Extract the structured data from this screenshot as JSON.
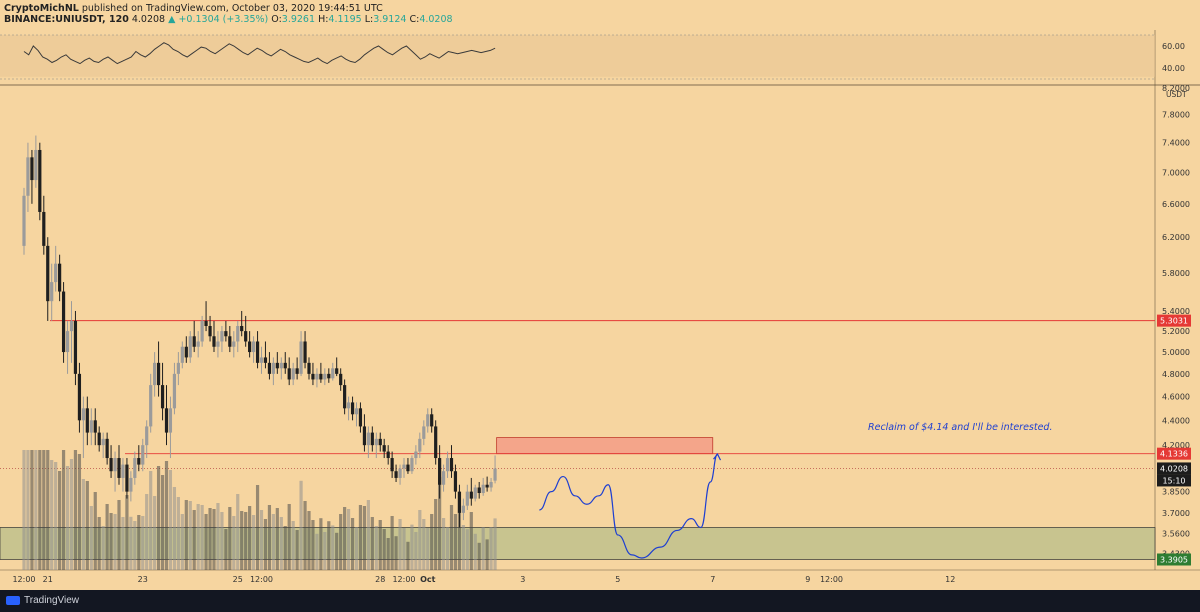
{
  "header": {
    "author": "CryptoMichNL",
    "published_text": "published on TradingView.com, October 03, 2020 19:44:51 UTC",
    "symbol": "BINANCE:UNIUSDT, 120",
    "last": "4.0208",
    "change": "▲ +0.1304 (+3.35%)",
    "o_label": "O:",
    "o": "3.9261",
    "h_label": "H:",
    "h": "4.1195",
    "l_label": "L:",
    "l": "3.9124",
    "c_label": "C:",
    "c": "4.0208"
  },
  "footer": {
    "brand": "TradingView"
  },
  "colors": {
    "background": "#f6d5a0",
    "candle_bull": "#9b9b9b",
    "candle_bear": "#1f1f1f",
    "resistance_line": "#e53935",
    "resistance_zone": "#f4a58a",
    "support_zone": "#c8c48f",
    "projection": "#1e3fd1",
    "rsi_line": "#3a3a3a"
  },
  "chart_data": {
    "type": "candlestick",
    "symbol": "BINANCE:UNIUSDT",
    "timeframe": "120",
    "currency": "USDT",
    "y_ticks": [
      "8.2000",
      "7.8000",
      "7.4000",
      "7.0000",
      "6.6000",
      "6.2000",
      "5.8000",
      "5.4000",
      "5.2000",
      "5.0000",
      "4.8000",
      "4.6000",
      "4.4000",
      "4.2000",
      "3.8500",
      "3.7000",
      "3.5600",
      "3.4300"
    ],
    "y_tick_values": [
      8.2,
      7.8,
      7.4,
      7.0,
      6.6,
      6.2,
      5.8,
      5.4,
      5.2,
      5.0,
      4.8,
      4.6,
      4.4,
      4.2,
      3.85,
      3.7,
      3.56,
      3.43
    ],
    "x_ticks": [
      {
        "label": "12:00",
        "day": 0.0
      },
      {
        "label": "21",
        "day": 0.5
      },
      {
        "label": "23",
        "day": 2.5
      },
      {
        "label": "25",
        "day": 4.5
      },
      {
        "label": "12:00",
        "day": 5.0
      },
      {
        "label": "28",
        "day": 7.5
      },
      {
        "label": "12:00",
        "day": 8.0
      },
      {
        "label": "Oct",
        "day": 8.5
      },
      {
        "label": "3",
        "day": 10.5
      },
      {
        "label": "5",
        "day": 12.5
      },
      {
        "label": "7",
        "day": 14.5
      },
      {
        "label": "9",
        "day": 16.5
      },
      {
        "label": "12:00",
        "day": 17.0
      },
      {
        "label": "12",
        "day": 19.5
      }
    ],
    "price_labels": [
      {
        "text": "5.3031",
        "value": 5.3031,
        "style": "red"
      },
      {
        "text": "4.1336",
        "value": 4.1336,
        "style": "red"
      },
      {
        "text": "4.0208",
        "value": 4.0208,
        "style": "dark"
      },
      {
        "text": "15:10",
        "value": 3.93,
        "style": "dark"
      },
      {
        "text": "3.3905",
        "value": 3.3905,
        "style": "green"
      }
    ],
    "key_levels": [
      {
        "name": "resistance",
        "value": 5.3031
      },
      {
        "name": "reclaim level",
        "value": 4.1336
      },
      {
        "name": "last price",
        "value": 4.0208
      }
    ],
    "zones": [
      {
        "name": "resistance box",
        "from": 4.1336,
        "to": 4.26,
        "start_day": 9.95,
        "end_day": 14.5
      },
      {
        "name": "support zone",
        "from": 3.3905,
        "to": 3.6
      }
    ],
    "annotation": "Reclaim of $4.14 and I'll be interested.",
    "projection_path": [
      [
        10.85,
        3.72
      ],
      [
        11.1,
        3.85
      ],
      [
        11.35,
        3.96
      ],
      [
        11.6,
        3.82
      ],
      [
        11.85,
        3.76
      ],
      [
        12.1,
        3.82
      ],
      [
        12.3,
        3.9
      ],
      [
        12.5,
        3.55
      ],
      [
        12.8,
        3.42
      ],
      [
        13.0,
        3.4
      ],
      [
        13.4,
        3.47
      ],
      [
        13.75,
        3.58
      ],
      [
        14.05,
        3.66
      ],
      [
        14.25,
        3.6
      ],
      [
        14.45,
        3.92
      ],
      [
        14.6,
        4.13
      ]
    ],
    "candles": [
      [
        0.0,
        6.1,
        6.8,
        6.0,
        6.7
      ],
      [
        0.083,
        6.7,
        7.4,
        6.5,
        7.2
      ],
      [
        0.167,
        7.2,
        7.3,
        6.6,
        6.9
      ],
      [
        0.25,
        6.9,
        7.5,
        6.8,
        7.3
      ],
      [
        0.333,
        7.3,
        7.4,
        6.4,
        6.5
      ],
      [
        0.417,
        6.5,
        6.7,
        6.0,
        6.1
      ],
      [
        0.5,
        6.1,
        6.2,
        5.3,
        5.5
      ],
      [
        0.583,
        5.5,
        5.9,
        5.3,
        5.7
      ],
      [
        0.667,
        5.7,
        6.1,
        5.6,
        5.9
      ],
      [
        0.75,
        5.9,
        6.0,
        5.5,
        5.6
      ],
      [
        0.833,
        5.6,
        5.7,
        4.9,
        5.0
      ],
      [
        0.917,
        5.0,
        5.3,
        4.8,
        5.2
      ],
      [
        1.0,
        5.2,
        5.5,
        4.9,
        5.3
      ],
      [
        1.083,
        5.3,
        5.4,
        4.7,
        4.8
      ],
      [
        1.167,
        4.8,
        4.9,
        4.3,
        4.4
      ],
      [
        1.25,
        4.4,
        4.6,
        4.1,
        4.5
      ],
      [
        1.333,
        4.5,
        4.6,
        4.2,
        4.3
      ],
      [
        1.417,
        4.3,
        4.5,
        4.2,
        4.4
      ],
      [
        1.5,
        4.4,
        4.5,
        4.2,
        4.3
      ],
      [
        1.583,
        4.3,
        4.35,
        4.15,
        4.2
      ],
      [
        1.667,
        4.2,
        4.3,
        4.1,
        4.25
      ],
      [
        1.75,
        4.25,
        4.3,
        4.05,
        4.1
      ],
      [
        1.833,
        4.1,
        4.2,
        3.95,
        4.0
      ],
      [
        1.917,
        4.0,
        4.15,
        3.85,
        4.1
      ],
      [
        2.0,
        4.1,
        4.2,
        3.9,
        3.95
      ],
      [
        2.083,
        3.95,
        4.1,
        3.85,
        4.05
      ],
      [
        2.167,
        4.05,
        4.1,
        3.8,
        3.85
      ],
      [
        2.25,
        3.85,
        4.0,
        3.78,
        3.95
      ],
      [
        2.333,
        3.95,
        4.15,
        3.9,
        4.1
      ],
      [
        2.417,
        4.1,
        4.2,
        4.0,
        4.05
      ],
      [
        2.5,
        4.05,
        4.25,
        4.0,
        4.2
      ],
      [
        2.583,
        4.2,
        4.4,
        4.1,
        4.35
      ],
      [
        2.667,
        4.35,
        4.8,
        4.3,
        4.7
      ],
      [
        2.75,
        4.7,
        5.0,
        4.6,
        4.9
      ],
      [
        2.833,
        4.9,
        5.1,
        4.6,
        4.7
      ],
      [
        2.917,
        4.7,
        4.9,
        4.4,
        4.5
      ],
      [
        3.0,
        4.5,
        4.7,
        4.2,
        4.3
      ],
      [
        3.083,
        4.3,
        4.6,
        4.1,
        4.5
      ],
      [
        3.167,
        4.5,
        4.9,
        4.45,
        4.8
      ],
      [
        3.25,
        4.8,
        5.0,
        4.7,
        4.9
      ],
      [
        3.333,
        4.9,
        5.1,
        4.85,
        5.05
      ],
      [
        3.417,
        5.05,
        5.15,
        4.9,
        4.95
      ],
      [
        3.5,
        4.95,
        5.2,
        4.9,
        5.15
      ],
      [
        3.583,
        5.15,
        5.3,
        5.0,
        5.05
      ],
      [
        3.667,
        5.05,
        5.2,
        4.95,
        5.1
      ],
      [
        3.75,
        5.1,
        5.35,
        5.05,
        5.3
      ],
      [
        3.833,
        5.3,
        5.5,
        5.2,
        5.25
      ],
      [
        3.917,
        5.25,
        5.35,
        5.1,
        5.15
      ],
      [
        4.0,
        5.15,
        5.3,
        5.0,
        5.05
      ],
      [
        4.083,
        5.05,
        5.2,
        4.95,
        5.1
      ],
      [
        4.167,
        5.1,
        5.25,
        5.0,
        5.2
      ],
      [
        4.25,
        5.2,
        5.3,
        5.1,
        5.15
      ],
      [
        4.333,
        5.15,
        5.25,
        5.0,
        5.05
      ],
      [
        4.417,
        5.05,
        5.2,
        4.95,
        5.1
      ],
      [
        4.5,
        5.1,
        5.3,
        5.0,
        5.25
      ],
      [
        4.583,
        5.25,
        5.4,
        5.15,
        5.2
      ],
      [
        4.667,
        5.2,
        5.35,
        5.05,
        5.1
      ],
      [
        4.75,
        5.1,
        5.2,
        4.95,
        5.0
      ],
      [
        4.833,
        5.0,
        5.15,
        4.9,
        5.1
      ],
      [
        4.917,
        5.1,
        5.2,
        4.85,
        4.9
      ],
      [
        5.0,
        4.9,
        5.05,
        4.8,
        4.95
      ],
      [
        5.083,
        4.95,
        5.1,
        4.85,
        4.9
      ],
      [
        5.167,
        4.9,
        5.0,
        4.75,
        4.8
      ],
      [
        5.25,
        4.8,
        4.95,
        4.7,
        4.9
      ],
      [
        5.333,
        4.9,
        5.0,
        4.8,
        4.85
      ],
      [
        5.417,
        4.85,
        4.95,
        4.75,
        4.9
      ],
      [
        5.5,
        4.9,
        5.0,
        4.8,
        4.85
      ],
      [
        5.583,
        4.85,
        4.95,
        4.7,
        4.75
      ],
      [
        5.667,
        4.75,
        4.9,
        4.7,
        4.85
      ],
      [
        5.75,
        4.85,
        4.95,
        4.75,
        4.8
      ],
      [
        5.833,
        4.8,
        5.2,
        4.78,
        5.1
      ],
      [
        5.917,
        5.1,
        5.2,
        4.85,
        4.9
      ],
      [
        6.0,
        4.9,
        4.95,
        4.75,
        4.8
      ],
      [
        6.083,
        4.8,
        4.9,
        4.7,
        4.75
      ],
      [
        6.167,
        4.75,
        4.85,
        4.68,
        4.8
      ],
      [
        6.25,
        4.8,
        4.9,
        4.72,
        4.75
      ],
      [
        6.333,
        4.75,
        4.85,
        4.7,
        4.8
      ],
      [
        6.417,
        4.8,
        4.85,
        4.72,
        4.76
      ],
      [
        6.5,
        4.76,
        4.9,
        4.74,
        4.85
      ],
      [
        6.583,
        4.85,
        4.95,
        4.78,
        4.8
      ],
      [
        6.667,
        4.8,
        4.85,
        4.65,
        4.7
      ],
      [
        6.75,
        4.7,
        4.75,
        4.45,
        4.5
      ],
      [
        6.833,
        4.5,
        4.6,
        4.4,
        4.55
      ],
      [
        6.917,
        4.55,
        4.6,
        4.4,
        4.45
      ],
      [
        7.0,
        4.45,
        4.55,
        4.35,
        4.5
      ],
      [
        7.083,
        4.5,
        4.55,
        4.3,
        4.35
      ],
      [
        7.167,
        4.35,
        4.45,
        4.15,
        4.2
      ],
      [
        7.25,
        4.2,
        4.35,
        4.1,
        4.3
      ],
      [
        7.333,
        4.3,
        4.35,
        4.15,
        4.2
      ],
      [
        7.417,
        4.2,
        4.3,
        4.1,
        4.25
      ],
      [
        7.5,
        4.25,
        4.3,
        4.15,
        4.2
      ],
      [
        7.583,
        4.2,
        4.25,
        4.1,
        4.15
      ],
      [
        7.667,
        4.15,
        4.2,
        4.05,
        4.1
      ],
      [
        7.75,
        4.1,
        4.15,
        3.95,
        4.0
      ],
      [
        7.833,
        4.0,
        4.05,
        3.92,
        3.95
      ],
      [
        7.917,
        3.95,
        4.05,
        3.9,
        4.02
      ],
      [
        8.0,
        4.02,
        4.1,
        3.95,
        4.05
      ],
      [
        8.083,
        4.05,
        4.1,
        3.98,
        4.0
      ],
      [
        8.167,
        4.0,
        4.12,
        3.98,
        4.1
      ],
      [
        8.25,
        4.1,
        4.2,
        4.05,
        4.15
      ],
      [
        8.333,
        4.15,
        4.3,
        4.1,
        4.25
      ],
      [
        8.417,
        4.25,
        4.4,
        4.2,
        4.35
      ],
      [
        8.5,
        4.35,
        4.5,
        4.3,
        4.45
      ],
      [
        8.583,
        4.45,
        4.5,
        4.3,
        4.35
      ],
      [
        8.667,
        4.35,
        4.4,
        4.05,
        4.1
      ],
      [
        8.75,
        4.1,
        4.2,
        3.8,
        3.9
      ],
      [
        8.833,
        3.9,
        4.05,
        3.85,
        4.0
      ],
      [
        8.917,
        4.0,
        4.15,
        3.95,
        4.1
      ],
      [
        9.0,
        4.1,
        4.2,
        3.95,
        4.0
      ],
      [
        9.083,
        4.0,
        4.05,
        3.8,
        3.85
      ],
      [
        9.167,
        3.85,
        3.9,
        3.6,
        3.7
      ],
      [
        9.25,
        3.7,
        3.8,
        3.65,
        3.75
      ],
      [
        9.333,
        3.75,
        3.9,
        3.72,
        3.85
      ],
      [
        9.417,
        3.85,
        3.95,
        3.75,
        3.8
      ],
      [
        9.5,
        3.8,
        3.9,
        3.78,
        3.88
      ],
      [
        9.583,
        3.88,
        3.92,
        3.8,
        3.84
      ],
      [
        9.667,
        3.84,
        3.95,
        3.82,
        3.9
      ],
      [
        9.75,
        3.9,
        3.96,
        3.85,
        3.88
      ],
      [
        9.833,
        3.88,
        3.95,
        3.85,
        3.92
      ],
      [
        9.917,
        3.93,
        4.12,
        3.91,
        4.02
      ]
    ],
    "rsi": {
      "y_ticks": [
        "60.00",
        "40.00"
      ],
      "y_tick_values": [
        60,
        40
      ],
      "band": [
        40,
        70
      ],
      "values": [
        55,
        52,
        60,
        56,
        50,
        48,
        45,
        47,
        50,
        52,
        48,
        46,
        44,
        47,
        49,
        46,
        45,
        48,
        50,
        47,
        44,
        46,
        48,
        50,
        55,
        52,
        50,
        53,
        57,
        60,
        63,
        61,
        57,
        55,
        52,
        50,
        53,
        56,
        59,
        58,
        55,
        53,
        56,
        59,
        62,
        60,
        57,
        54,
        52,
        55,
        58,
        56,
        53,
        51,
        54,
        57,
        55,
        52,
        50,
        48,
        46,
        45,
        47,
        49,
        46,
        44,
        47,
        49,
        51,
        48,
        46,
        45,
        48,
        52,
        55,
        58,
        60,
        57,
        54,
        52,
        55,
        58,
        60,
        56,
        52,
        48,
        50,
        53,
        51,
        49,
        52,
        55,
        54,
        53,
        54,
        55,
        56,
        55,
        54,
        55,
        56,
        58
      ]
    }
  }
}
